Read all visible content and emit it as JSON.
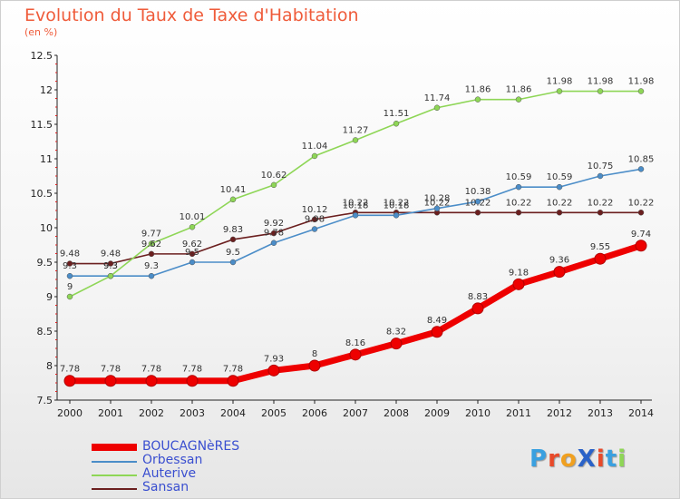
{
  "title": "Evolution du Taux de Taxe d'Habitation",
  "subtitle": "(en %)",
  "chart_data": {
    "type": "line",
    "title": "Evolution du Taux de Taxe d'Habitation",
    "ylabel": "(en %)",
    "xlabel": "",
    "x": [
      "2000",
      "2001",
      "2002",
      "2003",
      "2004",
      "2005",
      "2006",
      "2007",
      "2008",
      "2009",
      "2010",
      "2011",
      "2012",
      "2013",
      "2014"
    ],
    "ylim": [
      7.5,
      12.5
    ],
    "yticks": [
      7.5,
      8,
      8.5,
      9,
      9.5,
      10,
      10.5,
      11,
      11.5,
      12,
      12.5
    ],
    "grid": false,
    "legend_position": "bottom-left",
    "series": [
      {
        "name": "Sansan",
        "color": "#6b1f1f",
        "values": [
          9.48,
          9.48,
          9.62,
          9.62,
          9.83,
          9.92,
          10.12,
          10.22,
          10.22,
          10.22,
          10.22,
          10.22,
          10.22,
          10.22,
          10.22
        ],
        "labels": [
          "9.48",
          "9.48",
          "9.62",
          "9.62",
          "9.83",
          "9.92",
          "10.12",
          "10.22",
          "10.22",
          "10.22",
          "10.22",
          "10.22",
          "10.22",
          "10.22",
          "10.22"
        ]
      },
      {
        "name": "Orbessan",
        "color": "#4b8dc8",
        "values": [
          9.3,
          9.3,
          9.3,
          9.5,
          9.5,
          9.78,
          9.98,
          10.18,
          10.18,
          10.28,
          10.38,
          10.59,
          10.59,
          10.75,
          10.85
        ],
        "labels": [
          "9.3",
          "9.3",
          "9.3",
          "9.5",
          "9.5",
          "9.78",
          "9.98",
          "10.18",
          "10.18",
          "10.28",
          "10.38",
          "10.59",
          "10.59",
          "10.75",
          "10.85"
        ]
      },
      {
        "name": "Auterive",
        "color": "#8ed656",
        "values": [
          9,
          9.3,
          9.77,
          10.01,
          10.41,
          10.62,
          11.04,
          11.27,
          11.51,
          11.74,
          11.86,
          11.86,
          11.98,
          11.98,
          11.98
        ],
        "labels": [
          "9",
          "9.3",
          "9.77",
          "10.01",
          "10.41",
          "10.62",
          "11.04",
          "11.27",
          "11.51",
          "11.74",
          "11.86",
          "11.86",
          "11.98",
          "11.98",
          "11.98"
        ]
      },
      {
        "name": "BOUCAGNèRES",
        "color": "#ee0000",
        "values": [
          7.78,
          7.78,
          7.78,
          7.78,
          7.78,
          7.93,
          8,
          8.16,
          8.32,
          8.49,
          8.83,
          9.18,
          9.36,
          9.55,
          9.74
        ],
        "labels": [
          "7.78",
          "7.78",
          "7.78",
          "7.78",
          "7.78",
          "7.93",
          "8",
          "8.16",
          "8.32",
          "8.49",
          "8.83",
          "9.18",
          "9.36",
          "9.55",
          "9.74"
        ]
      }
    ]
  },
  "legend": [
    {
      "label": "BOUCAGNèRES",
      "color": "#ee0000"
    },
    {
      "label": "Orbessan",
      "color": "#4b8dc8"
    },
    {
      "label": "Auterive",
      "color": "#8ed656"
    },
    {
      "label": "Sansan",
      "color": "#6b1f1f"
    }
  ],
  "logo": {
    "text": "ProXiti",
    "letters": [
      "P",
      "r",
      "o",
      "X",
      "i",
      "t",
      "i"
    ],
    "colors": [
      "#3aa0e0",
      "#e84a2a",
      "#f0a020",
      "#2a62c8",
      "#e84a2a",
      "#3aa0e0",
      "#8ed656"
    ]
  }
}
